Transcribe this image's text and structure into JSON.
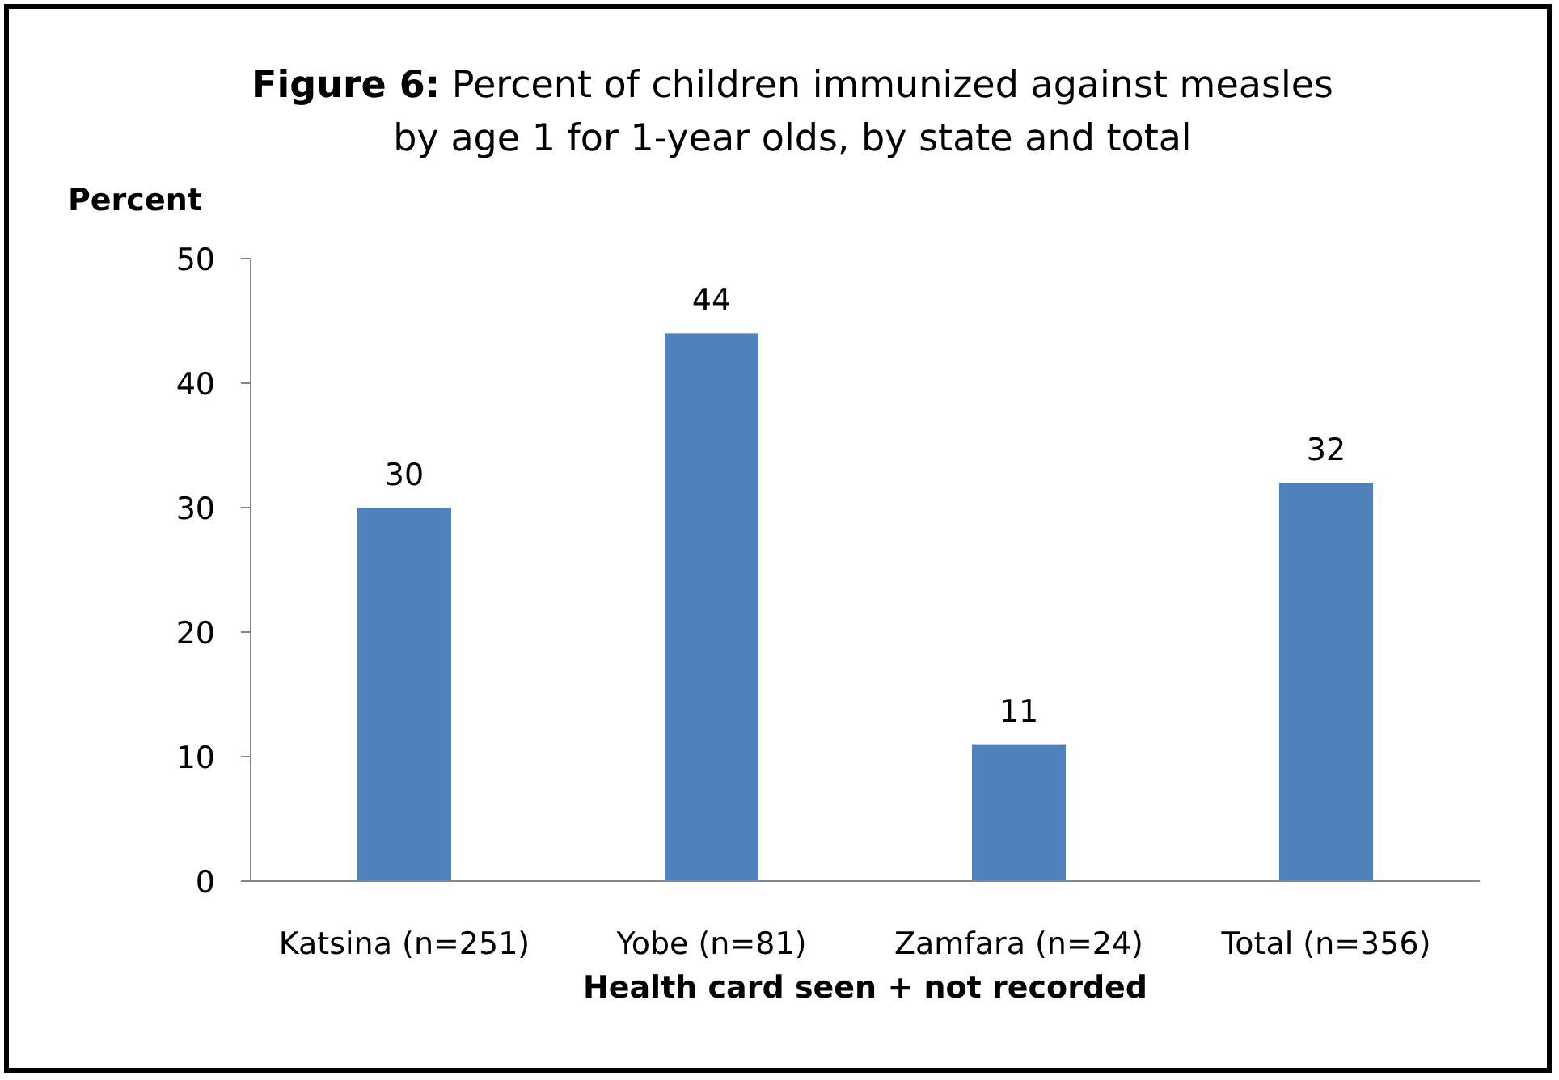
{
  "chart_data": {
    "type": "bar",
    "title": "Figure 6: Percent of children immunized against measles by age 1 for 1-year olds, by state and total",
    "ylabel": "Percent",
    "xlabel": "Health card seen + not recorded",
    "categories": [
      "Katsina (n=251)",
      "Yobe (n=81)",
      "Zamfara (n=24)",
      "Total (n=356)"
    ],
    "values": [
      30,
      44,
      11,
      32
    ],
    "color": "#4f81bd",
    "ylim": [
      0,
      50
    ],
    "yticks": [
      0,
      10,
      20,
      30,
      40,
      50
    ],
    "data_labels": true
  }
}
